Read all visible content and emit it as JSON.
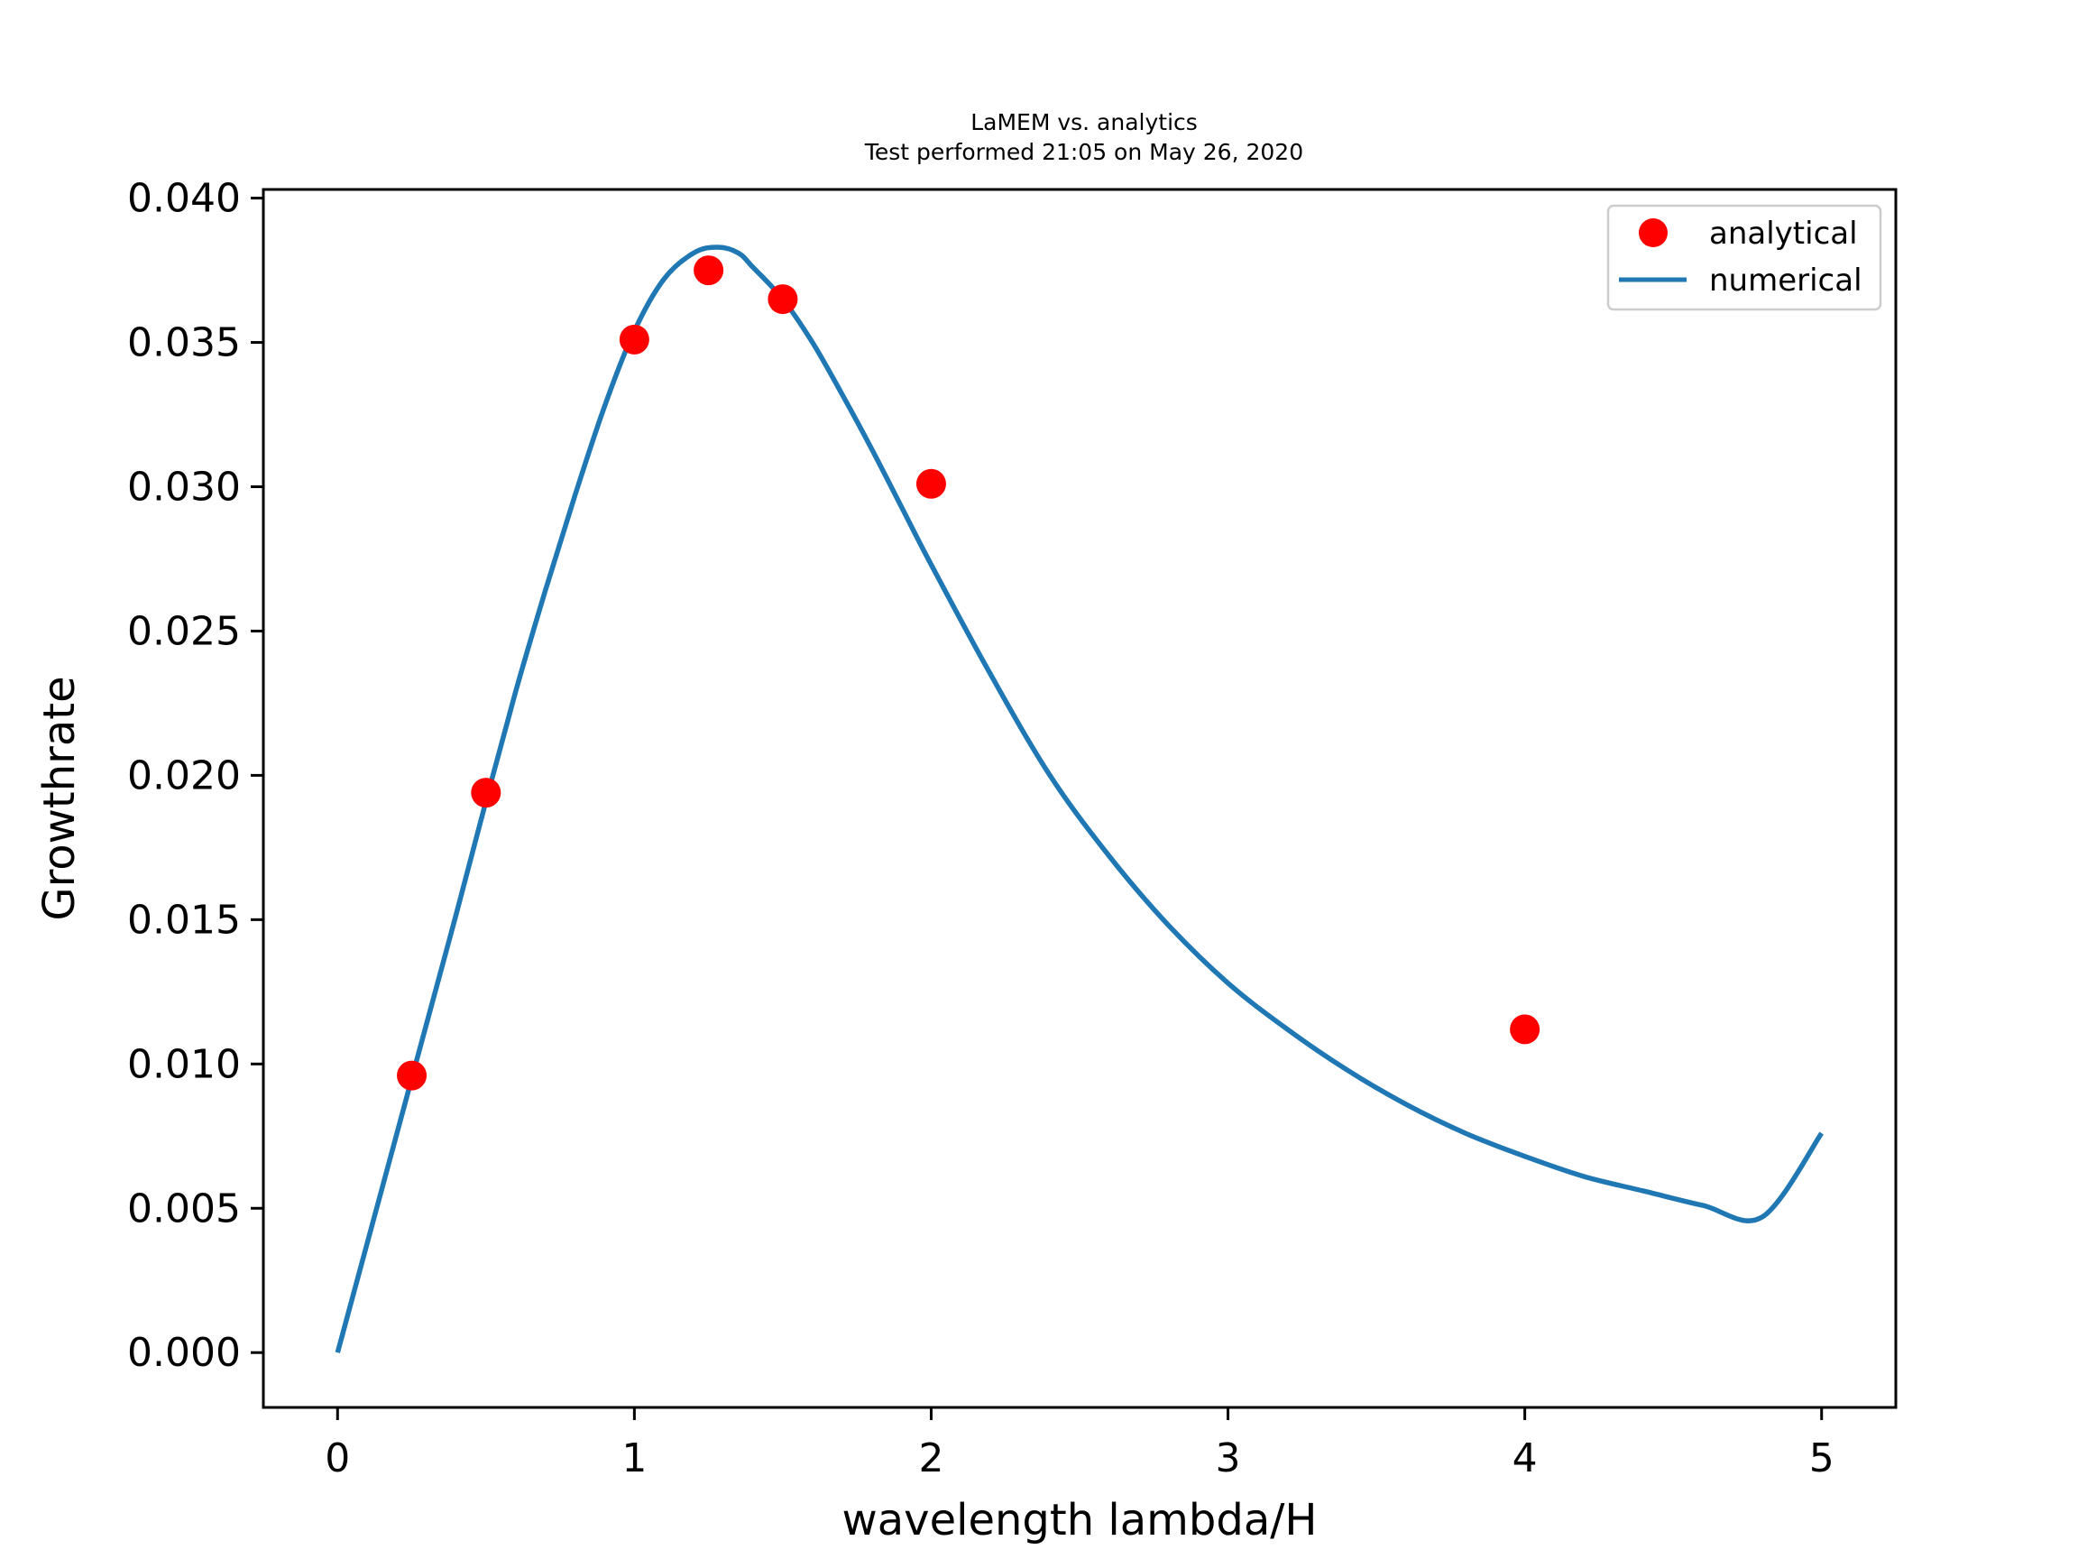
{
  "chart_data": {
    "type": "scatter",
    "title": "LaMEM vs. analytics",
    "subtitle": "Test performed 21:05 on May 26, 2020",
    "xlabel": "wavelength lambda/H",
    "ylabel": "Growthrate",
    "xlim": [
      -0.25,
      5.25
    ],
    "ylim": [
      -0.0019,
      0.0403
    ],
    "x_ticks": [
      0,
      1,
      2,
      3,
      4,
      5
    ],
    "x_tick_labels": [
      "0",
      "1",
      "2",
      "3",
      "4",
      "5"
    ],
    "y_ticks": [
      0.0,
      0.005,
      0.01,
      0.015,
      0.02,
      0.025,
      0.03,
      0.035,
      0.04
    ],
    "y_tick_labels": [
      "0.000",
      "0.005",
      "0.010",
      "0.015",
      "0.020",
      "0.025",
      "0.030",
      "0.035",
      "0.040"
    ],
    "grid": false,
    "legend_position": "top-right",
    "series": [
      {
        "name": "analytical",
        "kind": "scatter",
        "color": "#ff0000",
        "x": [
          0.25,
          0.5,
          1.0,
          1.25,
          1.5,
          2.0,
          4.0
        ],
        "y": [
          0.0096,
          0.0194,
          0.0351,
          0.0375,
          0.0365,
          0.0301,
          0.0112
        ]
      },
      {
        "name": "numerical",
        "kind": "line",
        "color": "#1f77b4",
        "x": [
          0.0,
          0.1,
          0.2,
          0.25,
          0.3,
          0.4,
          0.5,
          0.6,
          0.7,
          0.8,
          0.9,
          1.0,
          1.1,
          1.2,
          1.28,
          1.35,
          1.4,
          1.5,
          1.6,
          1.7,
          1.8,
          1.9,
          2.0,
          2.2,
          2.4,
          2.6,
          2.8,
          3.0,
          3.2,
          3.4,
          3.6,
          3.8,
          4.0,
          4.2,
          4.4,
          4.6,
          4.8,
          5.0
        ],
        "y": [
          0.0,
          0.0038,
          0.0076,
          0.0095,
          0.0114,
          0.0152,
          0.0191,
          0.0229,
          0.0264,
          0.0297,
          0.0328,
          0.0354,
          0.0372,
          0.0381,
          0.0383,
          0.0381,
          0.0376,
          0.0365,
          0.035,
          0.0332,
          0.0313,
          0.0293,
          0.0273,
          0.0235,
          0.02,
          0.0172,
          0.0148,
          0.0128,
          0.0112,
          0.0098,
          0.0086,
          0.0076,
          0.0068,
          0.0061,
          0.0056,
          0.0051,
          0.0047,
          0.0076
        ]
      }
    ]
  }
}
